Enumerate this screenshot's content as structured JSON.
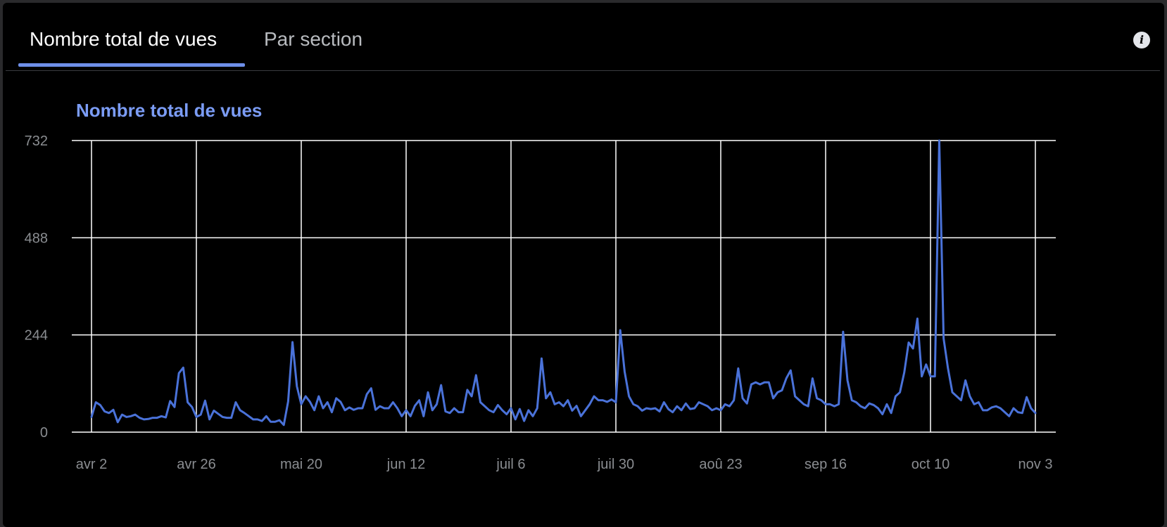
{
  "tabs": [
    {
      "label": "Nombre total de vues",
      "active": true
    },
    {
      "label": "Par section",
      "active": false
    }
  ],
  "info_icon": {
    "glyph": "i"
  },
  "colors": {
    "accent": "#6e8fe8",
    "line": "#4a72d9",
    "title": "#7b9cf5",
    "grid": "#ffffff",
    "background": "#000000"
  },
  "chart_data": {
    "type": "line",
    "title": "Nombre total de vues",
    "xlabel": "",
    "ylabel": "",
    "ylim": [
      0,
      732
    ],
    "y_ticks": [
      "0",
      "244",
      "488",
      "732"
    ],
    "x_tick_labels": [
      "avr 2",
      "avr 26",
      "mai 20",
      "jun 12",
      "juil 6",
      "juil 30",
      "aoû 23",
      "sep 16",
      "oct 10",
      "nov 3"
    ],
    "grid": true,
    "series": [
      {
        "values": [
          38,
          75,
          68,
          52,
          48,
          56,
          25,
          44,
          38,
          40,
          44,
          36,
          32,
          33,
          36,
          36,
          40,
          37,
          78,
          63,
          148,
          162,
          75,
          63,
          38,
          44,
          79,
          32,
          54,
          46,
          38,
          36,
          36,
          75,
          55,
          48,
          40,
          32,
          32,
          28,
          40,
          26,
          26,
          30,
          18,
          77,
          226,
          115,
          70,
          90,
          76,
          55,
          90,
          60,
          75,
          50,
          85,
          76,
          55,
          62,
          56,
          60,
          60,
          95,
          110,
          56,
          65,
          60,
          60,
          75,
          60,
          40,
          55,
          40,
          66,
          80,
          40,
          100,
          55,
          70,
          118,
          52,
          48,
          60,
          50,
          50,
          106,
          90,
          143,
          75,
          65,
          55,
          50,
          68,
          55,
          45,
          60,
          32,
          58,
          28,
          55,
          40,
          60,
          185,
          85,
          100,
          70,
          75,
          65,
          80,
          54,
          66,
          40,
          55,
          70,
          90,
          80,
          80,
          76,
          82,
          75,
          256,
          152,
          90,
          70,
          65,
          54,
          60,
          58,
          60,
          52,
          75,
          58,
          50,
          65,
          55,
          72,
          58,
          60,
          75,
          70,
          65,
          55,
          60,
          55,
          70,
          65,
          80,
          160,
          85,
          72,
          120,
          125,
          120,
          125,
          125,
          85,
          100,
          105,
          135,
          155,
          90,
          80,
          70,
          65,
          135,
          85,
          80,
          70,
          70,
          65,
          70,
          252,
          130,
          80,
          75,
          65,
          60,
          72,
          68,
          60,
          45,
          70,
          48,
          90,
          100,
          150,
          225,
          210,
          285,
          140,
          170,
          140,
          140,
          732,
          235,
          160,
          100,
          90,
          80,
          130,
          90,
          70,
          75,
          55,
          55,
          62,
          65,
          60,
          50,
          40,
          60,
          50,
          48,
          88,
          60,
          48
        ]
      }
    ]
  }
}
